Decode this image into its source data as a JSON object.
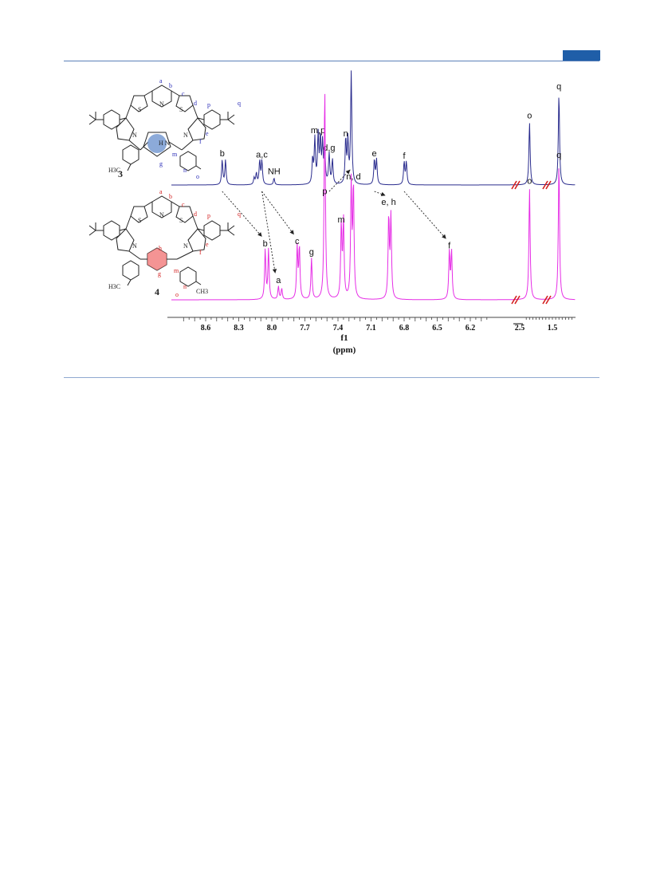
{
  "chart_data": {
    "type": "line",
    "xlabel": "f1",
    "xunit": "(ppm)",
    "x_ticks": [
      "8.6",
      "8.3",
      "8.0",
      "7.7",
      "7.4",
      "7.1",
      "6.8",
      "6.5",
      "6.2",
      "2.5",
      "1.5"
    ],
    "axis_break_after": "6.2",
    "series": [
      {
        "name": "3",
        "color": "#2b2d8e",
        "peaks": [
          {
            "ppm": 8.45,
            "height": 0.22,
            "label": "b"
          },
          {
            "ppm": 8.42,
            "height": 0.22,
            "label": ""
          },
          {
            "ppm": 8.16,
            "height": 0.06,
            "label": ""
          },
          {
            "ppm": 8.14,
            "height": 0.1,
            "label": ""
          },
          {
            "ppm": 8.11,
            "height": 0.21,
            "label": ""
          },
          {
            "ppm": 8.09,
            "height": 0.21,
            "label": "a,c"
          },
          {
            "ppm": 7.98,
            "height": 0.06,
            "label": "NH"
          },
          {
            "ppm": 7.63,
            "height": 0.22,
            "label": ""
          },
          {
            "ppm": 7.61,
            "height": 0.4,
            "label": ""
          },
          {
            "ppm": 7.58,
            "height": 0.43,
            "label": "m,p"
          },
          {
            "ppm": 7.56,
            "height": 0.4,
            "label": ""
          },
          {
            "ppm": 7.54,
            "height": 0.35,
            "label": ""
          },
          {
            "ppm": 7.52,
            "height": 0.3,
            "label": ""
          },
          {
            "ppm": 7.48,
            "height": 0.27,
            "label": "d,g"
          },
          {
            "ppm": 7.45,
            "height": 0.22,
            "label": ""
          },
          {
            "ppm": 7.33,
            "height": 0.4,
            "label": "n"
          },
          {
            "ppm": 7.31,
            "height": 0.38,
            "label": ""
          },
          {
            "ppm": 7.28,
            "height": 1.0,
            "label": ""
          },
          {
            "ppm": 7.07,
            "height": 0.22,
            "label": "e"
          },
          {
            "ppm": 7.05,
            "height": 0.22,
            "label": ""
          },
          {
            "ppm": 6.8,
            "height": 0.2,
            "label": "f"
          },
          {
            "ppm": 6.78,
            "height": 0.2,
            "label": ""
          },
          {
            "ppm": 2.2,
            "height": 0.56,
            "label": "o"
          },
          {
            "ppm": 1.3,
            "height": 0.82,
            "label": "q"
          }
        ]
      },
      {
        "name": "4",
        "color": "#e62ee6",
        "peaks": [
          {
            "ppm": 8.06,
            "height": 0.23,
            "label": "b"
          },
          {
            "ppm": 8.03,
            "height": 0.23,
            "label": ""
          },
          {
            "ppm": 7.94,
            "height": 0.06,
            "label": "a"
          },
          {
            "ppm": 7.91,
            "height": 0.05,
            "label": ""
          },
          {
            "ppm": 7.77,
            "height": 0.24,
            "label": "c"
          },
          {
            "ppm": 7.75,
            "height": 0.24,
            "label": ""
          },
          {
            "ppm": 7.64,
            "height": 0.19,
            "label": "g"
          },
          {
            "ppm": 7.52,
            "height": 1.0,
            "label": "p"
          },
          {
            "ppm": 7.37,
            "height": 0.34,
            "label": "m"
          },
          {
            "ppm": 7.35,
            "height": 0.36,
            "label": ""
          },
          {
            "ppm": 7.28,
            "height": 0.53,
            "label": ""
          },
          {
            "ppm": 7.26,
            "height": 0.52,
            "label": "n, d"
          },
          {
            "ppm": 6.94,
            "height": 0.38,
            "label": "e, h"
          },
          {
            "ppm": 6.92,
            "height": 0.38,
            "label": ""
          },
          {
            "ppm": 6.39,
            "height": 0.22,
            "label": "f"
          },
          {
            "ppm": 6.37,
            "height": 0.22,
            "label": ""
          },
          {
            "ppm": 2.2,
            "height": 0.52,
            "label": "o"
          },
          {
            "ppm": 1.3,
            "height": 0.64,
            "label": "q"
          }
        ]
      }
    ],
    "arrows": [
      {
        "from": "b",
        "to": "b"
      },
      {
        "from": "a,c",
        "to": "a"
      },
      {
        "from": "a,c",
        "to": "c"
      },
      {
        "from": "d,g",
        "to": "n, d"
      },
      {
        "from": "e",
        "to": "e, h"
      },
      {
        "from": "f",
        "to": "f"
      }
    ]
  },
  "structures": [
    {
      "compound_number": "3",
      "label_color": "#2b2db8",
      "highlight_color": "#6f95cf",
      "core_label": "H N",
      "ring_atom_S": "S",
      "ring_atom_N": "N",
      "methyl": "H3C",
      "proton_labels": [
        "a",
        "b",
        "c",
        "d",
        "e",
        "f",
        "g",
        "m",
        "n",
        "o",
        "p",
        "q"
      ]
    },
    {
      "compound_number": "4",
      "label_color": "#d42020",
      "highlight_color": "#f07070",
      "ring_atom_S": "S",
      "ring_atom_N": "N",
      "methyl": "H3C",
      "methyl_right": "CH3",
      "proton_labels": [
        "a",
        "b",
        "c",
        "d",
        "e",
        "f",
        "g",
        "h",
        "m",
        "n",
        "o",
        "p",
        "q"
      ]
    }
  ]
}
